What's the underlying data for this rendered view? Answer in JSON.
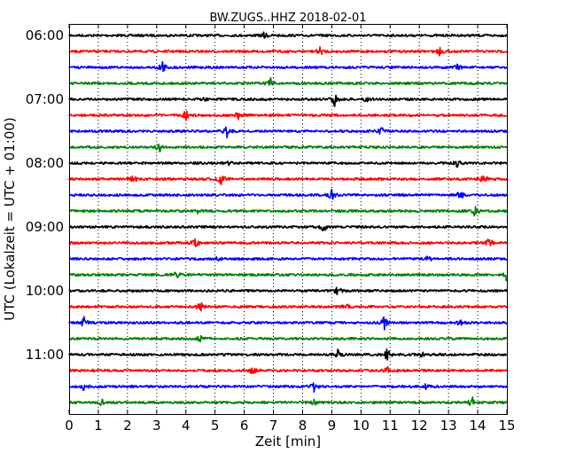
{
  "chart_data": {
    "type": "line",
    "title": "BW.ZUGS..HHZ 2018-02-01",
    "xlabel": "Zeit  [min]",
    "ylabel": "UTC (Lokalzeit = UTC + 01:00)",
    "xlim": [
      0,
      15
    ],
    "x_ticks": [
      "0",
      "1",
      "2",
      "3",
      "4",
      "5",
      "6",
      "7",
      "8",
      "9",
      "10",
      "11",
      "12",
      "13",
      "14",
      "15"
    ],
    "y_ticks": [
      "06:00",
      "07:00",
      "08:00",
      "09:00",
      "10:00",
      "11:00"
    ],
    "grid": "vertical dotted",
    "colors": [
      "#000000",
      "#ff0000",
      "#0000ff",
      "#008000"
    ],
    "traces": [
      {
        "start": "06:00",
        "color": "#000000",
        "spikes": [
          [
            6.7,
            0.5
          ]
        ]
      },
      {
        "start": "06:15",
        "color": "#ff0000",
        "spikes": [
          [
            8.6,
            0.6
          ],
          [
            12.7,
            0.6
          ]
        ]
      },
      {
        "start": "06:30",
        "color": "#0000ff",
        "spikes": [
          [
            3.2,
            1.0
          ],
          [
            13.3,
            0.5
          ]
        ]
      },
      {
        "start": "06:45",
        "color": "#008000",
        "spikes": [
          [
            6.9,
            0.8
          ]
        ]
      },
      {
        "start": "07:00",
        "color": "#000000",
        "spikes": [
          [
            9.1,
            1.0
          ],
          [
            4.6,
            0.3
          ],
          [
            10.2,
            0.3
          ]
        ]
      },
      {
        "start": "07:15",
        "color": "#ff0000",
        "spikes": [
          [
            4.0,
            0.7
          ],
          [
            5.8,
            0.5
          ]
        ]
      },
      {
        "start": "07:30",
        "color": "#0000ff",
        "spikes": [
          [
            5.4,
            1.0
          ],
          [
            10.7,
            0.6
          ]
        ]
      },
      {
        "start": "07:45",
        "color": "#008000",
        "spikes": [
          [
            3.1,
            0.7
          ]
        ]
      },
      {
        "start": "08:00",
        "color": "#000000",
        "spikes": [
          [
            5.5,
            0.3
          ],
          [
            13.3,
            0.5
          ]
        ]
      },
      {
        "start": "08:15",
        "color": "#ff0000",
        "spikes": [
          [
            2.2,
            0.5
          ],
          [
            5.2,
            0.9
          ],
          [
            14.2,
            0.7
          ]
        ]
      },
      {
        "start": "08:30",
        "color": "#0000ff",
        "spikes": [
          [
            9.0,
            1.0
          ],
          [
            13.4,
            0.7
          ]
        ]
      },
      {
        "start": "08:45",
        "color": "#008000",
        "spikes": [
          [
            4.4,
            0.3
          ],
          [
            13.9,
            0.9
          ]
        ]
      },
      {
        "start": "09:00",
        "color": "#000000",
        "spikes": [
          [
            8.7,
            0.9
          ]
        ]
      },
      {
        "start": "09:15",
        "color": "#ff0000",
        "spikes": [
          [
            4.3,
            0.8
          ],
          [
            14.4,
            0.8
          ]
        ]
      },
      {
        "start": "09:30",
        "color": "#0000ff",
        "spikes": [
          [
            5.1,
            0.3
          ],
          [
            12.3,
            0.5
          ]
        ]
      },
      {
        "start": "09:45",
        "color": "#008000",
        "spikes": [
          [
            3.7,
            0.7
          ],
          [
            15.0,
            1.0
          ]
        ]
      },
      {
        "start": "10:00",
        "color": "#000000",
        "spikes": [
          [
            9.2,
            0.7
          ]
        ]
      },
      {
        "start": "10:15",
        "color": "#ff0000",
        "spikes": [
          [
            4.5,
            0.8
          ],
          [
            9.5,
            0.5
          ]
        ]
      },
      {
        "start": "10:30",
        "color": "#0000ff",
        "spikes": [
          [
            0.5,
            0.8
          ],
          [
            10.8,
            1.0
          ],
          [
            13.4,
            0.4
          ]
        ]
      },
      {
        "start": "10:45",
        "color": "#008000",
        "spikes": [
          [
            4.5,
            0.6
          ]
        ]
      },
      {
        "start": "11:00",
        "color": "#000000",
        "spikes": [
          [
            9.2,
            0.7
          ],
          [
            10.9,
            0.9
          ],
          [
            12.1,
            0.3
          ]
        ]
      },
      {
        "start": "11:15",
        "color": "#ff0000",
        "spikes": [
          [
            6.3,
            0.7
          ],
          [
            10.9,
            0.6
          ]
        ]
      },
      {
        "start": "11:30",
        "color": "#0000ff",
        "spikes": [
          [
            0.5,
            0.6
          ],
          [
            8.4,
            0.9
          ],
          [
            12.2,
            0.4
          ]
        ]
      },
      {
        "start": "11:45",
        "color": "#008000",
        "spikes": [
          [
            1.1,
            0.5
          ],
          [
            8.4,
            0.4
          ],
          [
            13.8,
            0.9
          ]
        ]
      }
    ]
  }
}
